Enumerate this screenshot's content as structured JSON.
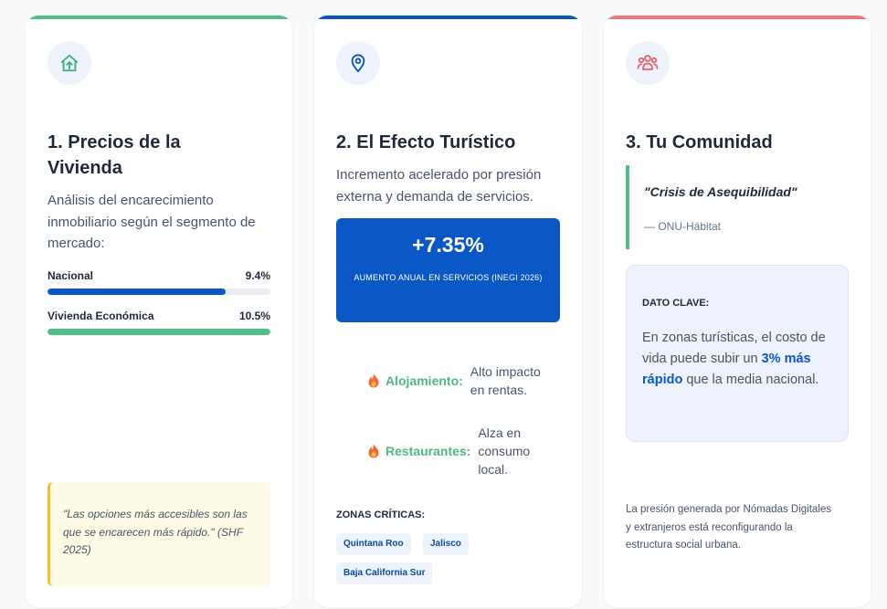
{
  "cards": [
    {
      "icon": "home-icon",
      "accent": "#4fbf8a",
      "title": "1. Precios de la Vivienda",
      "description": "Análisis del encarecimiento inmobiliario según el segmento de mercado:",
      "bars": [
        {
          "label": "Nacional",
          "value_label": "9.4%",
          "fill_fraction": 0.8,
          "color": "#0b57c6"
        },
        {
          "label": "Vivienda Económica",
          "value_label": "10.5%",
          "fill_fraction": 1.0,
          "color": "#4fbf8a"
        }
      ],
      "quote": "\"Las opciones más accesibles son las que se encarecen más rápido.\" (SHF 2025)"
    },
    {
      "icon": "map-pin-icon",
      "accent": "#0b57b8",
      "title": "2. El Efecto Turístico",
      "description": "Incremento acelerado por presión externa y demanda de servicios.",
      "stat": {
        "value": "+7.35%",
        "label": "Aumento anual en servicios (INEGI 2026)"
      },
      "impacts": [
        {
          "icon": "flame-icon",
          "name": "Alojamiento:",
          "desc": "Alto impacto en rentas."
        },
        {
          "icon": "flame-icon",
          "name": "Restaurantes:",
          "desc": "Alza en consumo local."
        }
      ],
      "zones_title": "ZONAS CRÍTICAS:",
      "zones": [
        "Quintana Roo",
        "Jalisco",
        "Baja California Sur"
      ]
    },
    {
      "icon": "community-icon",
      "accent": "#ee747d",
      "title": "3. Tu Comunidad",
      "quote": "\"Crisis de Asequibilidad\"",
      "quote_source": "— ONU-Hábitat",
      "key_title": "DATO CLAVE:",
      "key_text_before": "En zonas turísticas, el costo de vida puede subir un ",
      "key_text_highlight": "3% más rápido",
      "key_text_after": " que la media nacional.",
      "footer": "La presión generada por Nómadas Digitales y extranjeros está reconfigurando la estructura social urbana."
    }
  ]
}
